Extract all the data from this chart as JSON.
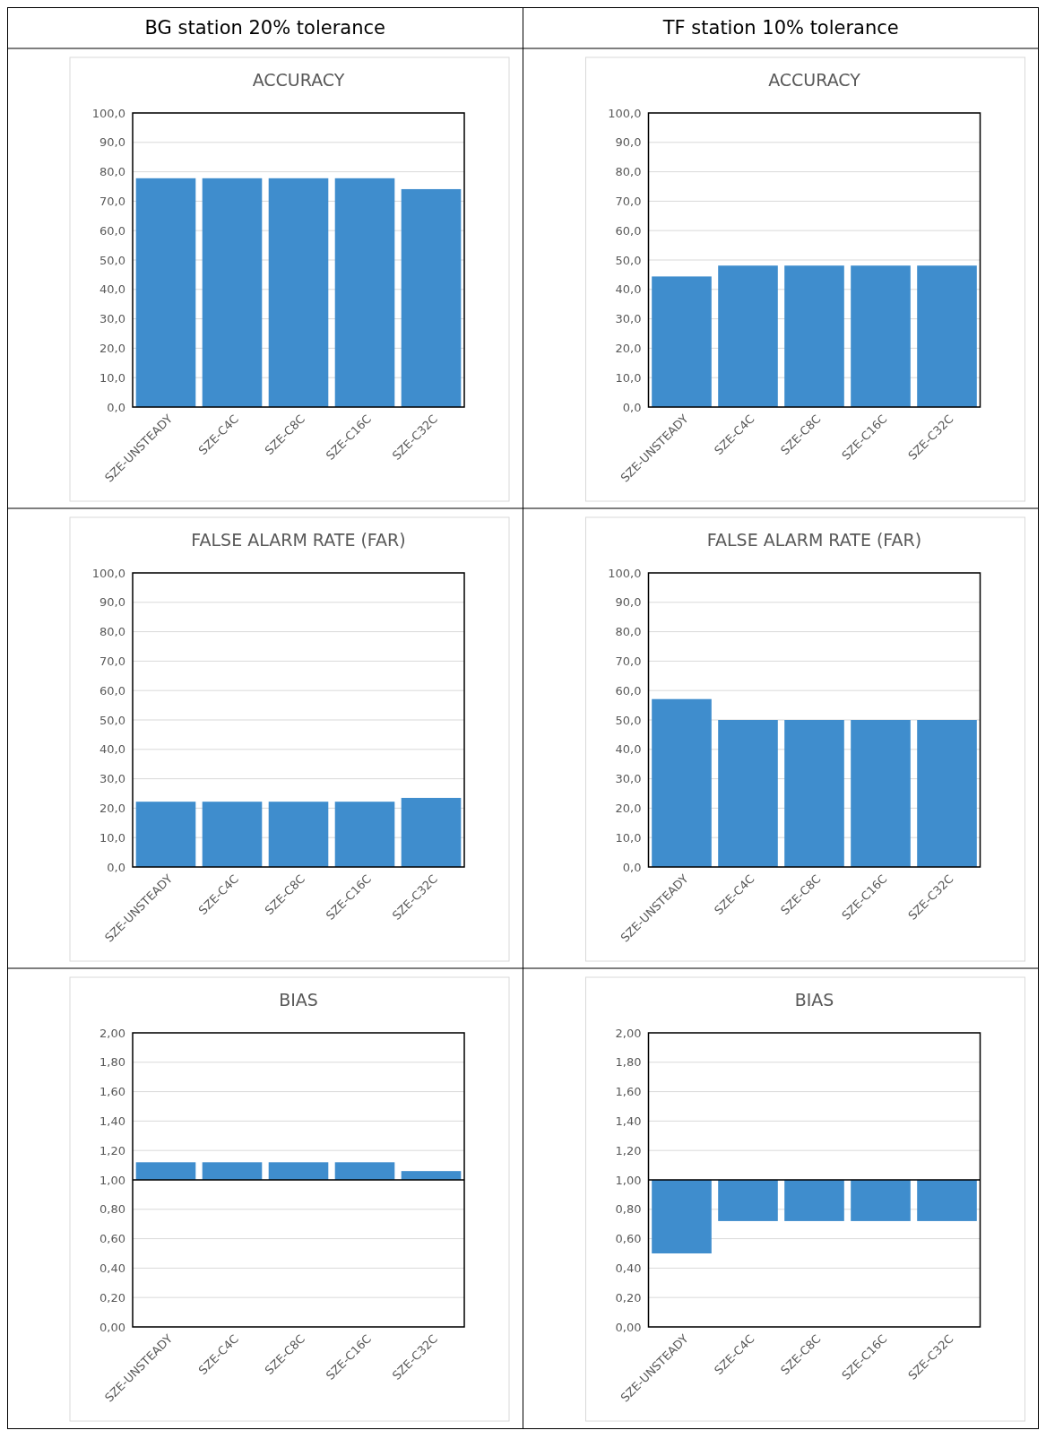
{
  "chart_data": [
    {
      "type": "bar",
      "subtitle": "BG station 20% tolerance",
      "title": "ACCURACY",
      "categories": [
        "SZE-UNSTEADY",
        "SZE-C4C",
        "SZE-C8C",
        "SZE-C16C",
        "SZE-C32C"
      ],
      "values": [
        77.8,
        77.8,
        77.8,
        77.8,
        74.1
      ],
      "color": "#3f8dcd",
      "ylim": [
        0,
        100
      ],
      "yticks": [
        {
          "value": 0,
          "label": "0,0"
        },
        {
          "value": 10,
          "label": "10,0"
        },
        {
          "value": 20,
          "label": "20,0"
        },
        {
          "value": 30,
          "label": "30,0"
        },
        {
          "value": 40,
          "label": "40,0"
        },
        {
          "value": 50,
          "label": "50,0"
        },
        {
          "value": 60,
          "label": "60,0"
        },
        {
          "value": 70,
          "label": "70,0"
        },
        {
          "value": 80,
          "label": "80,0"
        },
        {
          "value": 90,
          "label": "90,0"
        },
        {
          "value": 100,
          "label": "100,0"
        }
      ],
      "grid": "y"
    },
    {
      "type": "bar",
      "subtitle": "TF station 10% tolerance",
      "title": "ACCURACY",
      "categories": [
        "SZE-UNSTEADY",
        "SZE-C4C",
        "SZE-C8C",
        "SZE-C16C",
        "SZE-C32C"
      ],
      "values": [
        44.4,
        48.1,
        48.1,
        48.1,
        48.1
      ],
      "color": "#3f8dcd",
      "ylim": [
        0,
        100
      ],
      "yticks": [
        {
          "value": 0,
          "label": "0,0"
        },
        {
          "value": 10,
          "label": "10,0"
        },
        {
          "value": 20,
          "label": "20,0"
        },
        {
          "value": 30,
          "label": "30,0"
        },
        {
          "value": 40,
          "label": "40,0"
        },
        {
          "value": 50,
          "label": "50,0"
        },
        {
          "value": 60,
          "label": "60,0"
        },
        {
          "value": 70,
          "label": "70,0"
        },
        {
          "value": 80,
          "label": "80,0"
        },
        {
          "value": 90,
          "label": "90,0"
        },
        {
          "value": 100,
          "label": "100,0"
        }
      ],
      "grid": "y"
    },
    {
      "type": "bar",
      "title": "FALSE ALARM RATE (FAR)",
      "categories": [
        "SZE-UNSTEADY",
        "SZE-C4C",
        "SZE-C8C",
        "SZE-C16C",
        "SZE-C32C"
      ],
      "values": [
        22.2,
        22.2,
        22.2,
        22.2,
        23.5
      ],
      "color": "#3f8dcd",
      "ylim": [
        0,
        100
      ],
      "yticks": [
        {
          "value": 0,
          "label": "0,0"
        },
        {
          "value": 10,
          "label": "10,0"
        },
        {
          "value": 20,
          "label": "20,0"
        },
        {
          "value": 30,
          "label": "30,0"
        },
        {
          "value": 40,
          "label": "40,0"
        },
        {
          "value": 50,
          "label": "50,0"
        },
        {
          "value": 60,
          "label": "60,0"
        },
        {
          "value": 70,
          "label": "70,0"
        },
        {
          "value": 80,
          "label": "80,0"
        },
        {
          "value": 90,
          "label": "90,0"
        },
        {
          "value": 100,
          "label": "100,0"
        }
      ],
      "grid": "y"
    },
    {
      "type": "bar",
      "title": "FALSE ALARM RATE (FAR)",
      "categories": [
        "SZE-UNSTEADY",
        "SZE-C4C",
        "SZE-C8C",
        "SZE-C16C",
        "SZE-C32C"
      ],
      "values": [
        57.1,
        50,
        50,
        50,
        50
      ],
      "color": "#3f8dcd",
      "ylim": [
        0,
        100
      ],
      "yticks": [
        {
          "value": 0,
          "label": "0,0"
        },
        {
          "value": 10,
          "label": "10,0"
        },
        {
          "value": 20,
          "label": "20,0"
        },
        {
          "value": 30,
          "label": "30,0"
        },
        {
          "value": 40,
          "label": "40,0"
        },
        {
          "value": 50,
          "label": "50,0"
        },
        {
          "value": 60,
          "label": "60,0"
        },
        {
          "value": 70,
          "label": "70,0"
        },
        {
          "value": 80,
          "label": "80,0"
        },
        {
          "value": 90,
          "label": "90,0"
        },
        {
          "value": 100,
          "label": "100,0"
        }
      ],
      "grid": "y"
    },
    {
      "type": "bar",
      "title": "BIAS",
      "categories": [
        "SZE-UNSTEADY",
        "SZE-C4C",
        "SZE-C8C",
        "SZE-C16C",
        "SZE-C32C"
      ],
      "base": [
        1,
        1,
        1,
        1,
        1
      ],
      "values": [
        0.12,
        0.12,
        0.12,
        0.12,
        0.06
      ],
      "color": "#3f8dcd",
      "ref_lines": [
        {
          "axis": "y",
          "value": 1,
          "color": "#000000"
        }
      ],
      "ylim": [
        0,
        2
      ],
      "yticks": [
        {
          "value": 0,
          "label": "0,00"
        },
        {
          "value": 0.2,
          "label": "0,20"
        },
        {
          "value": 0.4,
          "label": "0,40"
        },
        {
          "value": 0.6,
          "label": "0,60"
        },
        {
          "value": 0.8,
          "label": "0,80"
        },
        {
          "value": 1,
          "label": "1,00"
        },
        {
          "value": 1.2,
          "label": "1,20"
        },
        {
          "value": 1.4,
          "label": "1,40"
        },
        {
          "value": 1.6,
          "label": "1,60"
        },
        {
          "value": 1.8,
          "label": "1,80"
        },
        {
          "value": 2,
          "label": "2,00"
        }
      ],
      "grid": "y"
    },
    {
      "type": "bar",
      "title": "BIAS",
      "categories": [
        "SZE-UNSTEADY",
        "SZE-C4C",
        "SZE-C8C",
        "SZE-C16C",
        "SZE-C32C"
      ],
      "base": [
        1,
        1,
        1,
        1,
        1
      ],
      "values": [
        -0.5,
        -0.28,
        -0.28,
        -0.28,
        -0.28
      ],
      "color": "#3f8dcd",
      "ref_lines": [
        {
          "axis": "y",
          "value": 1,
          "color": "#000000"
        }
      ],
      "ylim": [
        0,
        2
      ],
      "yticks": [
        {
          "value": 0,
          "label": "0,00"
        },
        {
          "value": 0.2,
          "label": "0,20"
        },
        {
          "value": 0.4,
          "label": "0,40"
        },
        {
          "value": 0.6,
          "label": "0,60"
        },
        {
          "value": 0.8,
          "label": "0,80"
        },
        {
          "value": 1,
          "label": "1,00"
        },
        {
          "value": 1.2,
          "label": "1,20"
        },
        {
          "value": 1.4,
          "label": "1,40"
        },
        {
          "value": 1.6,
          "label": "1,60"
        },
        {
          "value": 1.8,
          "label": "1,80"
        },
        {
          "value": 2,
          "label": "2,00"
        }
      ],
      "grid": "y"
    }
  ]
}
